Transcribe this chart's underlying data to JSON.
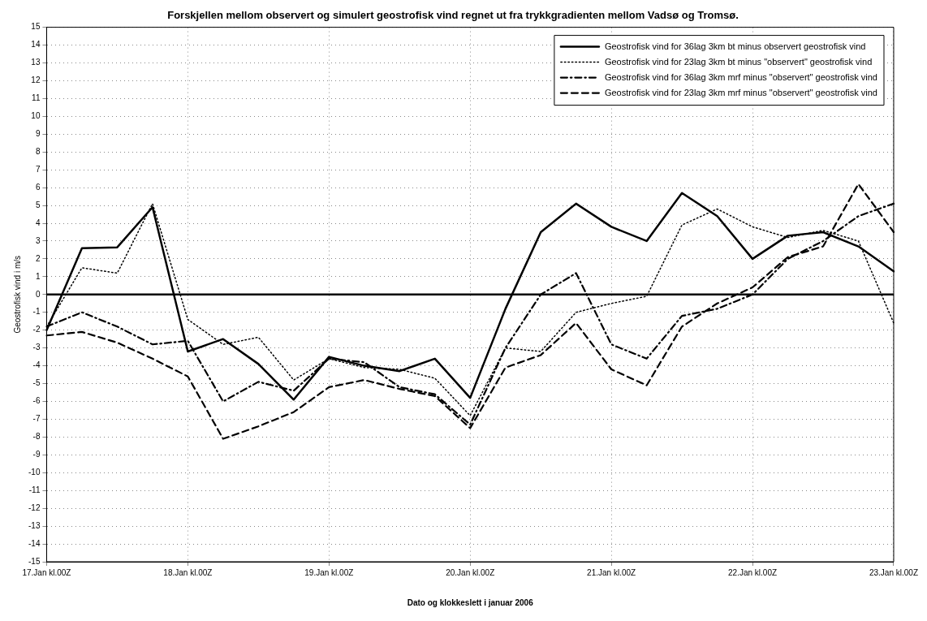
{
  "chart_data": {
    "type": "line",
    "title": "Forskjellen mellom observert og simulert geostrofisk vind regnet ut fra trykkgradienten mellom Vadsø og Tromsø.",
    "xlabel": "Dato og klokkeslett i januar 2006",
    "ylabel": "Geostrofisk vind i m/s",
    "categories": [
      "17.Jan kl.00Z",
      null,
      null,
      null,
      "18.Jan kl.00Z",
      null,
      null,
      null,
      "19.Jan kl.00Z",
      null,
      null,
      null,
      "20.Jan kl.00Z",
      null,
      null,
      null,
      "21.Jan kl.00Z",
      null,
      null,
      null,
      "22.Jan kl.00Z",
      null,
      null,
      null,
      "23.Jan kl.00Z"
    ],
    "series": [
      {
        "name": "Geostrofisk vind for 36lag 3km bt minus observert geostrofisk vind",
        "color": "#000000",
        "line_style": "solid",
        "values": [
          -2,
          2.6,
          2.65,
          4.9,
          -3.2,
          -2.5,
          -3.9,
          -5.9,
          -3.5,
          -4,
          -4.3,
          -3.6,
          -5.8,
          -0.8,
          3.5,
          5.1,
          3.8,
          3.0,
          5.7,
          4.4,
          2.0,
          3.3,
          3.5,
          2.7,
          1.3
        ]
      },
      {
        "name": "Geostrofisk vind for 23lag 3km bt minus \"observert\" geostrofisk vind",
        "color": "#000000",
        "line_style": "dotted",
        "values": [
          -1.8,
          1.5,
          1.2,
          5.1,
          -1.4,
          -2.8,
          -2.4,
          -4.8,
          -3.6,
          -4.1,
          -4.2,
          -4.7,
          -6.8,
          -3.0,
          -3.2,
          -1.0,
          -0.5,
          -0.1,
          3.9,
          4.8,
          3.8,
          3.2,
          3.6,
          3.0,
          -1.6
        ]
      },
      {
        "name": "Geostrofisk vind for 36lag 3km mrf minus \"observert\" geostrofisk vind",
        "color": "#000000",
        "line_style": "dashdot",
        "values": [
          -1.8,
          -1.0,
          -1.8,
          -2.8,
          -2.6,
          -6.0,
          -4.9,
          -5.4,
          -3.6,
          -3.8,
          -5.2,
          -5.6,
          -7.3,
          -3.0,
          0.0,
          1.2,
          -2.8,
          -3.6,
          -1.2,
          -0.8,
          0.0,
          2.0,
          3.0,
          4.4,
          5.1
        ]
      },
      {
        "name": "Geostrofisk vind for 23lag 3km mrf minus \"observert\" geostrofisk vind",
        "color": "#000000",
        "line_style": "dashed",
        "values": [
          -2.3,
          -2.1,
          -2.7,
          -3.6,
          -4.6,
          -8.1,
          -7.4,
          -6.6,
          -5.2,
          -4.8,
          -5.3,
          -5.7,
          -7.5,
          -4.1,
          -3.4,
          -1.6,
          -4.2,
          -5.1,
          -1.8,
          -0.5,
          0.4,
          2.1,
          2.7,
          6.2,
          3.5
        ]
      }
    ],
    "ylim": [
      -15,
      15
    ],
    "yticks": [
      -15,
      -14,
      -13,
      -12,
      -11,
      -10,
      -9,
      -8,
      -7,
      -6,
      -5,
      -4,
      -3,
      -2,
      -1,
      0,
      1,
      2,
      3,
      4,
      5,
      6,
      7,
      8,
      9,
      10,
      11,
      12,
      13,
      14,
      15
    ],
    "ref_lines": [
      {
        "axis": "y",
        "value": 0,
        "color": "#000000",
        "line_style": "solid"
      }
    ],
    "grid": true,
    "legend": "top right",
    "marker": "none"
  }
}
